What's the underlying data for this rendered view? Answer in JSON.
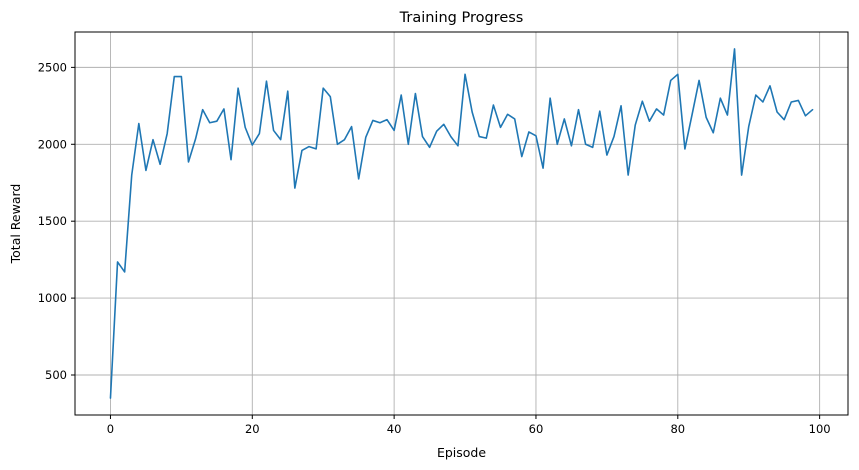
{
  "chart_data": {
    "type": "line",
    "title": "Training Progress",
    "xlabel": "Episode",
    "ylabel": "Total Reward",
    "xlim": [
      -5,
      104
    ],
    "ylim": [
      240,
      2730
    ],
    "xticks": [
      0,
      20,
      40,
      60,
      80,
      100
    ],
    "yticks": [
      500,
      1000,
      1500,
      2000,
      2500
    ],
    "grid": true,
    "series_color": "#1f77b4",
    "x": [
      0,
      1,
      2,
      3,
      4,
      5,
      6,
      7,
      8,
      9,
      10,
      11,
      12,
      13,
      14,
      15,
      16,
      17,
      18,
      19,
      20,
      21,
      22,
      23,
      24,
      25,
      26,
      27,
      28,
      29,
      30,
      31,
      32,
      33,
      34,
      35,
      36,
      37,
      38,
      39,
      40,
      41,
      42,
      43,
      44,
      45,
      46,
      47,
      48,
      49,
      50,
      51,
      52,
      53,
      54,
      55,
      56,
      57,
      58,
      59,
      60,
      61,
      62,
      63,
      64,
      65,
      66,
      67,
      68,
      69,
      70,
      71,
      72,
      73,
      74,
      75,
      76,
      77,
      78,
      79,
      80,
      81,
      82,
      83,
      84,
      85,
      86,
      87,
      88,
      89,
      90,
      91,
      92,
      93,
      94,
      95,
      96,
      97,
      98,
      99
    ],
    "values": [
      350,
      1235,
      1170,
      1800,
      2135,
      1830,
      2030,
      1870,
      2070,
      2440,
      2440,
      1885,
      2035,
      2225,
      2140,
      2150,
      2230,
      1900,
      2365,
      2110,
      1995,
      2070,
      2410,
      2090,
      2030,
      2345,
      1715,
      1960,
      1985,
      1970,
      2365,
      2310,
      2000,
      2030,
      2115,
      1775,
      2045,
      2155,
      2140,
      2160,
      2090,
      2320,
      2000,
      2330,
      2050,
      1980,
      2085,
      2130,
      2050,
      1990,
      2455,
      2210,
      2050,
      2040,
      2255,
      2110,
      2195,
      2165,
      1920,
      2080,
      2055,
      1845,
      2300,
      2000,
      2165,
      1990,
      2225,
      2000,
      1980,
      2215,
      1930,
      2050,
      2250,
      1800,
      2125,
      2280,
      2150,
      2230,
      2190,
      2415,
      2455,
      1970,
      2190,
      2415,
      2175,
      2075,
      2300,
      2190,
      2620,
      1800,
      2115,
      2320,
      2275,
      2380,
      2210,
      2160,
      2275,
      2285,
      2185,
      2225
    ]
  }
}
